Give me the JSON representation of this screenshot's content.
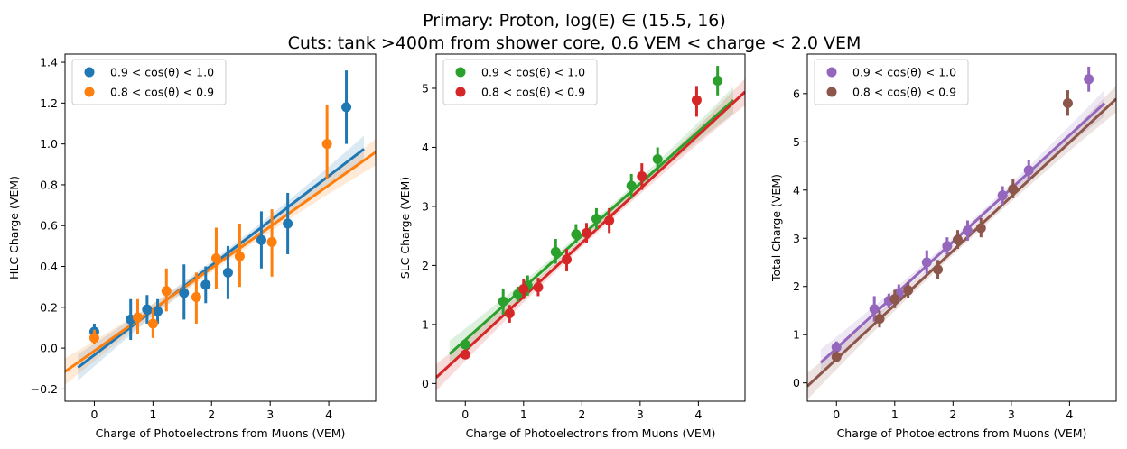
{
  "figure": {
    "title_line1": "Primary: Proton, log(E) ∈ (15.5, 16)",
    "title_line2": "Cuts:  tank >400m from shower core,   0.6 VEM < charge < 2.0 VEM"
  },
  "chart_data": [
    {
      "type": "scatter",
      "xlabel": "Charge of Photoelectrons from Muons (VEM)",
      "ylabel": "HLC Charge (VEM)",
      "xlim": [
        -0.5,
        4.8
      ],
      "ylim": [
        -0.26,
        1.44
      ],
      "xticks": [
        0,
        1,
        2,
        3,
        4
      ],
      "yticks": [
        -0.2,
        0.0,
        0.2,
        0.4,
        0.6,
        0.8,
        1.0,
        1.2,
        1.4
      ],
      "ytick_labels": [
        "−0.2",
        "0.0",
        "0.2",
        "0.4",
        "0.6",
        "0.8",
        "1.0",
        "1.2",
        "1.4"
      ],
      "grid": false,
      "legend_position": "upper-left",
      "series": [
        {
          "name": "0.9 < cos(θ) < 1.0",
          "color": "#1f77b4",
          "x": [
            0.0,
            0.62,
            0.9,
            1.08,
            1.53,
            1.9,
            2.28,
            2.85,
            3.3,
            4.3
          ],
          "y": [
            0.08,
            0.14,
            0.19,
            0.18,
            0.27,
            0.31,
            0.37,
            0.53,
            0.61,
            1.18
          ],
          "y_low": [
            0.05,
            0.04,
            0.12,
            0.12,
            0.14,
            0.22,
            0.24,
            0.39,
            0.46,
            1.0
          ],
          "y_high": [
            0.12,
            0.24,
            0.26,
            0.24,
            0.41,
            0.4,
            0.5,
            0.67,
            0.76,
            1.36
          ],
          "fit": {
            "x": [
              -0.28,
              4.6
            ],
            "y": [
              -0.095,
              0.975
            ]
          }
        },
        {
          "name": "0.8 < cos(θ) < 0.9",
          "color": "#ff7f0e",
          "x": [
            0.0,
            0.74,
            1.0,
            1.23,
            1.74,
            2.08,
            2.48,
            3.03,
            3.97
          ],
          "y": [
            0.05,
            0.15,
            0.12,
            0.28,
            0.25,
            0.44,
            0.45,
            0.52,
            1.0
          ],
          "y_low": [
            0.02,
            0.07,
            0.05,
            0.18,
            0.12,
            0.29,
            0.3,
            0.35,
            0.83
          ],
          "y_high": [
            0.09,
            0.24,
            0.19,
            0.39,
            0.37,
            0.59,
            0.61,
            0.68,
            1.19
          ],
          "fit": {
            "x": [
              -0.5,
              4.8
            ],
            "y": [
              -0.115,
              0.96
            ]
          }
        }
      ]
    },
    {
      "type": "scatter",
      "xlabel": "Charge of Photoelectrons from Muons (VEM)",
      "ylabel": "SLC Charge (VEM)",
      "xlim": [
        -0.5,
        4.8
      ],
      "ylim": [
        -0.3,
        5.58
      ],
      "xticks": [
        0,
        1,
        2,
        3,
        4
      ],
      "yticks": [
        0,
        1,
        2,
        3,
        4,
        5
      ],
      "ytick_labels": [
        "0",
        "1",
        "2",
        "3",
        "4",
        "5"
      ],
      "grid": false,
      "legend_position": "upper-left",
      "series": [
        {
          "name": "0.9 < cos(θ) < 1.0",
          "color": "#2ca02c",
          "x": [
            0.0,
            0.65,
            0.9,
            1.07,
            1.55,
            1.9,
            2.25,
            2.85,
            3.3,
            4.33
          ],
          "y": [
            0.66,
            1.39,
            1.51,
            1.66,
            2.23,
            2.53,
            2.79,
            3.35,
            3.8,
            5.13
          ],
          "y_low": [
            0.58,
            1.17,
            1.38,
            1.49,
            2.03,
            2.38,
            2.61,
            3.13,
            3.6,
            4.88
          ],
          "y_high": [
            0.74,
            1.6,
            1.64,
            1.83,
            2.45,
            2.7,
            2.97,
            3.55,
            4.0,
            5.38
          ],
          "fit": {
            "x": [
              -0.27,
              4.6
            ],
            "y": [
              0.5,
              4.8
            ]
          }
        },
        {
          "name": "0.8 < cos(θ) < 0.9",
          "color": "#d62728",
          "x": [
            0.0,
            0.76,
            1.0,
            1.25,
            1.74,
            2.08,
            2.47,
            3.03,
            3.97
          ],
          "y": [
            0.49,
            1.19,
            1.6,
            1.63,
            2.1,
            2.55,
            2.76,
            3.51,
            4.8
          ],
          "y_low": [
            0.41,
            1.03,
            1.43,
            1.48,
            1.9,
            2.38,
            2.55,
            3.28,
            4.52
          ],
          "y_high": [
            0.57,
            1.33,
            1.77,
            1.79,
            2.28,
            2.72,
            2.97,
            3.73,
            5.04
          ],
          "fit": {
            "x": [
              -0.5,
              4.8
            ],
            "y": [
              0.1,
              4.94
            ]
          }
        }
      ]
    },
    {
      "type": "scatter",
      "xlabel": "Charge of Photoelectrons from Muons (VEM)",
      "ylabel": "Total Charge (VEM)",
      "xlim": [
        -0.5,
        4.8
      ],
      "ylim": [
        -0.38,
        6.82
      ],
      "xticks": [
        0,
        1,
        2,
        3,
        4
      ],
      "yticks": [
        0,
        1,
        2,
        3,
        4,
        5,
        6
      ],
      "ytick_labels": [
        "0",
        "1",
        "2",
        "3",
        "4",
        "5",
        "6"
      ],
      "grid": false,
      "legend_position": "upper-left",
      "series": [
        {
          "name": "0.9 < cos(θ) < 1.0",
          "color": "#9467bd",
          "x": [
            0.0,
            0.65,
            0.9,
            1.07,
            1.55,
            1.9,
            2.25,
            2.85,
            3.3,
            4.33
          ],
          "y": [
            0.74,
            1.53,
            1.7,
            1.86,
            2.5,
            2.84,
            3.16,
            3.89,
            4.41,
            6.3
          ],
          "y_low": [
            0.62,
            1.27,
            1.55,
            1.68,
            2.26,
            2.66,
            2.95,
            3.69,
            4.2,
            6.04
          ],
          "y_high": [
            0.86,
            1.8,
            1.85,
            2.04,
            2.75,
            3.02,
            3.37,
            4.08,
            4.62,
            6.56
          ],
          "fit": {
            "x": [
              -0.27,
              4.6
            ],
            "y": [
              0.42,
              5.8
            ]
          }
        },
        {
          "name": "0.8 < cos(θ) < 0.9",
          "color": "#8c564b",
          "x": [
            0.0,
            0.74,
            1.0,
            1.23,
            1.74,
            2.08,
            2.48,
            3.03,
            3.97
          ],
          "y": [
            0.54,
            1.33,
            1.74,
            1.92,
            2.35,
            2.97,
            3.21,
            4.02,
            5.8
          ],
          "y_low": [
            0.43,
            1.15,
            1.55,
            1.77,
            2.16,
            2.78,
            3.02,
            3.83,
            5.54
          ],
          "y_high": [
            0.66,
            1.5,
            1.93,
            2.08,
            2.55,
            3.17,
            3.42,
            4.22,
            6.07
          ],
          "fit": {
            "x": [
              -0.5,
              4.8
            ],
            "y": [
              -0.07,
              5.89
            ]
          }
        }
      ]
    }
  ]
}
